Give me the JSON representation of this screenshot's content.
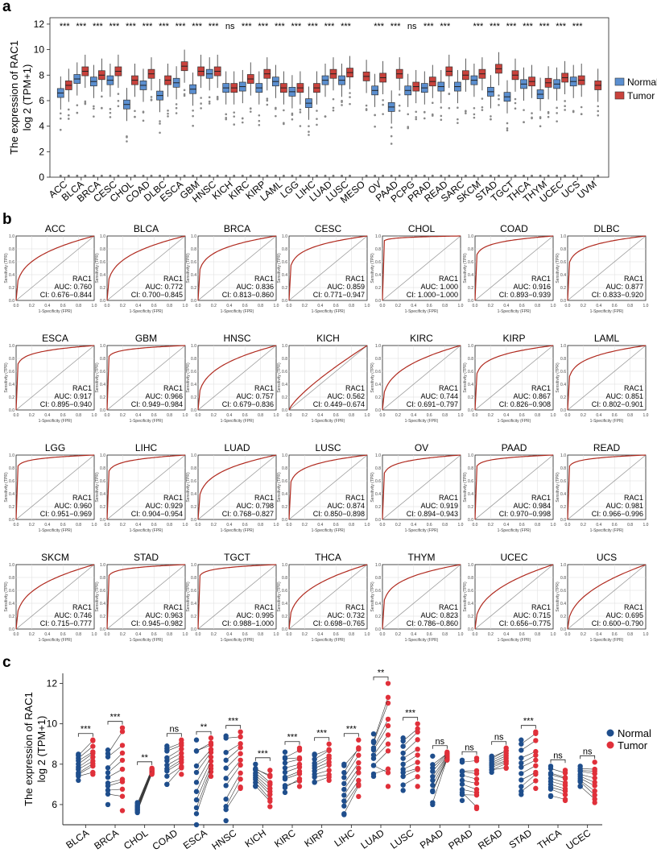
{
  "panel_letters": {
    "a": "a",
    "b": "b",
    "c": "c"
  },
  "chart_data": [
    {
      "panel": "a",
      "type": "box",
      "ylabel": "The expression of RAC1\nlog 2 (TPM+1)",
      "ylim": [
        0,
        12.5
      ],
      "yticks": [
        0,
        2,
        4,
        6,
        8,
        10,
        12
      ],
      "legend": [
        "Normal",
        "Tumor"
      ],
      "colors": {
        "Normal": "#5b8fd0",
        "Tumor": "#c9423c"
      },
      "categories": [
        "ACC",
        "BLCA",
        "BRCA",
        "CESC",
        "CHOL",
        "COAD",
        "DLBC",
        "ESCA",
        "GBM",
        "HNSC",
        "KICH",
        "KIRC",
        "KIRP",
        "LAML",
        "LGG",
        "LIHC",
        "LUAD",
        "LUSC",
        "MESO",
        "OV",
        "PAAD",
        "PCPG",
        "PRAD",
        "READ",
        "SARC",
        "SKCM",
        "STAD",
        "TGCT",
        "THCA",
        "THYM",
        "UCEC",
        "UCS",
        "UVM"
      ],
      "significance": [
        "***",
        "***",
        "***",
        "***",
        "***",
        "***",
        "***",
        "***",
        "***",
        "***",
        "ns",
        "***",
        "***",
        "***",
        "***",
        "***",
        "***",
        "***",
        "",
        "***",
        "***",
        "ns",
        "***",
        "***",
        "",
        "***",
        "***",
        "***",
        "***",
        "***",
        "***",
        "***",
        ""
      ],
      "normal_median": [
        6.6,
        7.7,
        7.5,
        7.6,
        5.7,
        7.2,
        6.4,
        7.4,
        6.9,
        8.1,
        7.0,
        7.1,
        7.0,
        7.5,
        6.7,
        5.8,
        7.6,
        7.6,
        null,
        6.8,
        5.5,
        6.8,
        7.0,
        7.1,
        7.1,
        7.6,
        6.7,
        6.3,
        7.3,
        6.5,
        7.3,
        7.5,
        null
      ],
      "tumor_median": [
        7.2,
        8.3,
        8.0,
        8.3,
        7.6,
        8.1,
        7.6,
        8.7,
        8.3,
        8.3,
        7.0,
        7.7,
        8.1,
        7.0,
        7.0,
        7.0,
        8.1,
        8.2,
        7.9,
        7.8,
        8.1,
        7.1,
        7.5,
        8.3,
        8.0,
        8.1,
        8.5,
        8.0,
        7.5,
        7.4,
        7.8,
        7.6,
        7.2
      ]
    },
    {
      "panel": "b",
      "type": "roc",
      "xlabel": "1-Specificity (FPR)",
      "ylabel": "Sensitivity (TPR)",
      "ticks": [
        "0.0",
        "0.2",
        "0.4",
        "0.6",
        "0.8",
        "1.0"
      ],
      "marker": "RAC1",
      "auc_prefix": "AUC: ",
      "ci_prefix": "CI: ",
      "panels": [
        {
          "name": "ACC",
          "auc": "0.760",
          "ci": "0.676−0.844"
        },
        {
          "name": "BLCA",
          "auc": "0.772",
          "ci": "0.700−0.845"
        },
        {
          "name": "BRCA",
          "auc": "0.836",
          "ci": "0.813−0.860"
        },
        {
          "name": "CESC",
          "auc": "0.859",
          "ci": "0.771−0.947"
        },
        {
          "name": "CHOL",
          "auc": "1.000",
          "ci": "1.000−1.000"
        },
        {
          "name": "COAD",
          "auc": "0.916",
          "ci": "0.893−0.939"
        },
        {
          "name": "DLBC",
          "auc": "0.877",
          "ci": "0.833−0.920"
        },
        {
          "name": "ESCA",
          "auc": "0.917",
          "ci": "0.895−0.940"
        },
        {
          "name": "GBM",
          "auc": "0.966",
          "ci": "0.949−0.984"
        },
        {
          "name": "HNSC",
          "auc": "0.757",
          "ci": "0.679−0.836"
        },
        {
          "name": "KICH",
          "auc": "0.562",
          "ci": "0.449−0.674"
        },
        {
          "name": "KIRC",
          "auc": "0.744",
          "ci": "0.691−0.797"
        },
        {
          "name": "KIRP",
          "auc": "0.867",
          "ci": "0.826−0.908"
        },
        {
          "name": "LAML",
          "auc": "0.851",
          "ci": "0.802−0.901"
        },
        {
          "name": "LGG",
          "auc": "0.960",
          "ci": "0.951−0.969"
        },
        {
          "name": "LIHC",
          "auc": "0.929",
          "ci": "0.904−0.954"
        },
        {
          "name": "LUAD",
          "auc": "0.798",
          "ci": "0.768−0.827"
        },
        {
          "name": "LUSC",
          "auc": "0.874",
          "ci": "0.850−0.898"
        },
        {
          "name": "OV",
          "auc": "0.919",
          "ci": "0.894−0.943"
        },
        {
          "name": "PAAD",
          "auc": "0.984",
          "ci": "0.970−0.998"
        },
        {
          "name": "READ",
          "auc": "0.981",
          "ci": "0.966−0.996"
        },
        {
          "name": "SKCM",
          "auc": "0.746",
          "ci": "0.715−0.777"
        },
        {
          "name": "STAD",
          "auc": "0.963",
          "ci": "0.945−0.982"
        },
        {
          "name": "TGCT",
          "auc": "0.995",
          "ci": "0.988−1.000"
        },
        {
          "name": "THCA",
          "auc": "0.732",
          "ci": "0.698−0.765"
        },
        {
          "name": "THYM",
          "auc": "0.823",
          "ci": "0.786−0.860"
        },
        {
          "name": "UCEC",
          "auc": "0.715",
          "ci": "0.656−0.775"
        },
        {
          "name": "UCS",
          "auc": "0.695",
          "ci": "0.600−0.790"
        }
      ]
    },
    {
      "panel": "c",
      "type": "paired",
      "ylabel": "The expression of RAC1\nlog 2 (TPM+1)",
      "ylim": [
        5.0,
        12.5
      ],
      "yticks": [
        6,
        8,
        10,
        12
      ],
      "legend": [
        "Normal",
        "Tumor"
      ],
      "colors": {
        "Normal": "#1f4e8c",
        "Tumor": "#e0303a"
      },
      "categories": [
        "BLCA",
        "BRCA",
        "CHOL",
        "COAD",
        "ESCA",
        "HNSC",
        "KICH",
        "KIRC",
        "KIRP",
        "LIHC",
        "LUAD",
        "LUSC",
        "PAAD",
        "PRAD",
        "READ",
        "STAD",
        "THCA",
        "UCEC"
      ],
      "significance": [
        "***",
        "***",
        "**",
        "ns",
        "**",
        "***",
        "***",
        "***",
        "***",
        "***",
        "**",
        "***",
        "ns",
        "ns",
        "ns",
        "***",
        "ns",
        "ns"
      ],
      "normal_range": [
        [
          7.2,
          8.5
        ],
        [
          6.0,
          8.7
        ],
        [
          5.6,
          6.1
        ],
        [
          7.0,
          8.9
        ],
        [
          5.0,
          9.2
        ],
        [
          5.2,
          9.4
        ],
        [
          6.9,
          8.0
        ],
        [
          6.6,
          8.6
        ],
        [
          7.1,
          8.5
        ],
        [
          5.5,
          8.0
        ],
        [
          7.4,
          9.5
        ],
        [
          6.7,
          9.3
        ],
        [
          6.0,
          8.4
        ],
        [
          6.2,
          8.2
        ],
        [
          7.6,
          8.4
        ],
        [
          6.5,
          9.2
        ],
        [
          6.4,
          7.9
        ],
        [
          6.9,
          7.9
        ]
      ],
      "tumor_range": [
        [
          7.5,
          9.2
        ],
        [
          5.7,
          9.8
        ],
        [
          7.5,
          7.8
        ],
        [
          7.5,
          9.2
        ],
        [
          7.4,
          9.3
        ],
        [
          6.8,
          9.6
        ],
        [
          5.9,
          7.7
        ],
        [
          6.9,
          8.8
        ],
        [
          7.2,
          9.0
        ],
        [
          6.4,
          9.2
        ],
        [
          6.9,
          12.0
        ],
        [
          6.9,
          10.0
        ],
        [
          8.2,
          8.6
        ],
        [
          5.8,
          8.3
        ],
        [
          7.8,
          8.8
        ],
        [
          6.8,
          9.6
        ],
        [
          6.2,
          7.7
        ],
        [
          6.1,
          8.1
        ]
      ]
    }
  ]
}
